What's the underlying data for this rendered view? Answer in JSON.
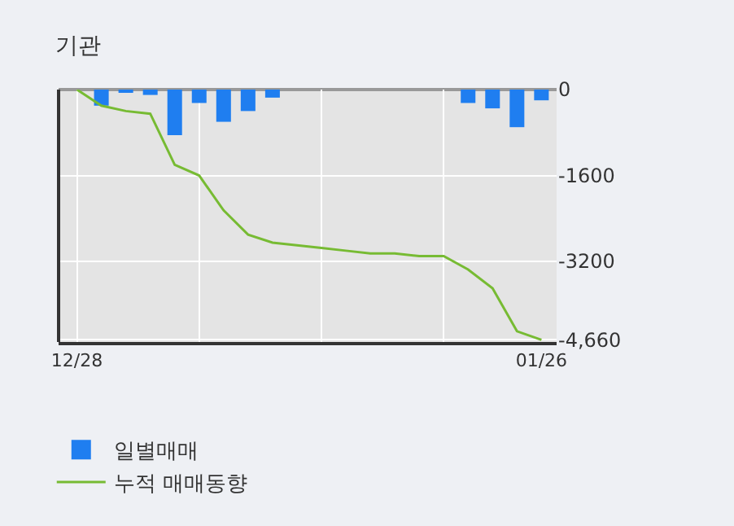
{
  "chart_data": {
    "type": "bar",
    "title": "기관",
    "categories": [
      "12/28",
      null,
      null,
      null,
      null,
      null,
      null,
      null,
      null,
      null,
      null,
      null,
      null,
      null,
      null,
      null,
      null,
      null,
      null,
      "01/26"
    ],
    "series": [
      {
        "name": "일별매매",
        "color": "#1f7ef0",
        "values": [
          0,
          -300,
          -50,
          -100,
          -850,
          -250,
          -600,
          -400,
          -150,
          0,
          0,
          0,
          0,
          0,
          0,
          0,
          -250,
          -350,
          -700,
          -200
        ]
      },
      {
        "name": "누적 매매동향",
        "type": "line",
        "color": "#77bb33",
        "values": [
          0,
          -300,
          -400,
          -450,
          -1400,
          -1600,
          -2250,
          -2700,
          -2850,
          -2900,
          -2950,
          -3000,
          -3050,
          -3050,
          -3100,
          -3100,
          -3350,
          -3700,
          -4500,
          -4660
        ]
      }
    ],
    "ylim": [
      -4700,
      0
    ],
    "yticks": [
      0,
      -1600,
      -3200,
      {
        "value": -4660,
        "label": "-4,660"
      }
    ],
    "grid": true,
    "legend": "bottom",
    "marker": "none",
    "line_style": "solid"
  }
}
